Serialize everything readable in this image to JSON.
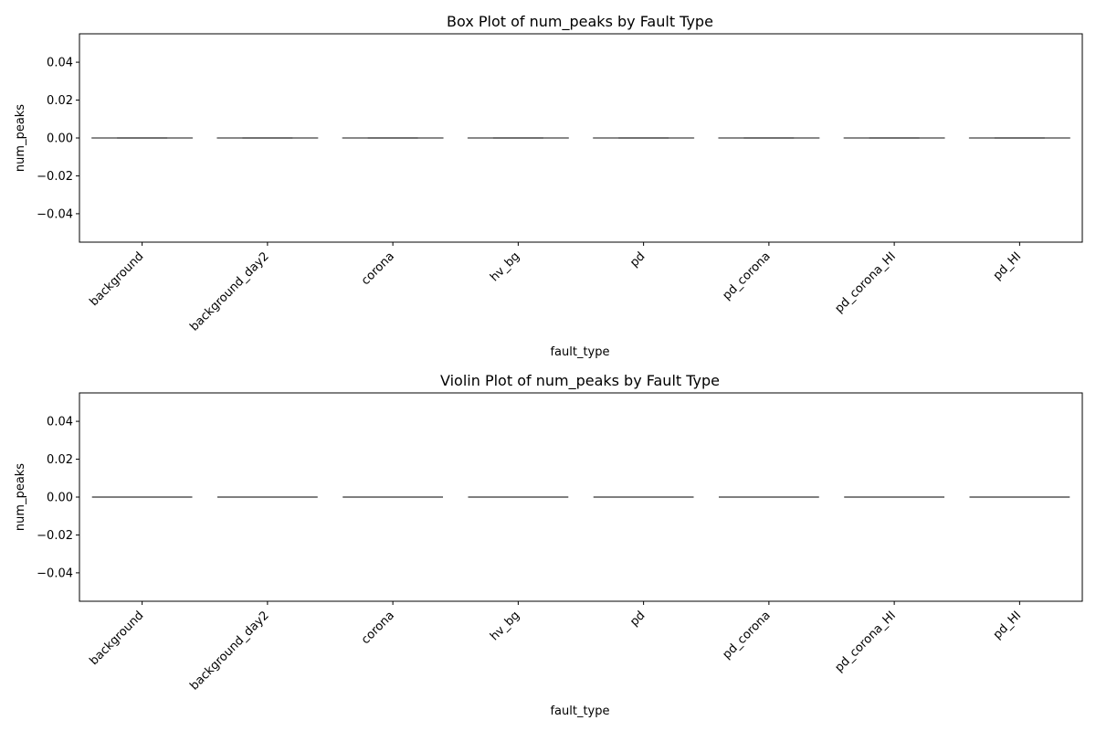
{
  "chart_data": [
    {
      "type": "box",
      "title": "Box Plot of num_peaks by Fault Type",
      "xlabel": "fault_type",
      "ylabel": "num_peaks",
      "categories": [
        "background",
        "background_day2",
        "corona",
        "hv_bg",
        "pd",
        "pd_corona",
        "pd_corona_HI",
        "pd_HI"
      ],
      "series": [
        {
          "stats": [
            {
              "min": 0,
              "q1": 0,
              "median": 0,
              "q3": 0,
              "max": 0
            },
            {
              "min": 0,
              "q1": 0,
              "median": 0,
              "q3": 0,
              "max": 0
            },
            {
              "min": 0,
              "q1": 0,
              "median": 0,
              "q3": 0,
              "max": 0
            },
            {
              "min": 0,
              "q1": 0,
              "median": 0,
              "q3": 0,
              "max": 0
            },
            {
              "min": 0,
              "q1": 0,
              "median": 0,
              "q3": 0,
              "max": 0
            },
            {
              "min": 0,
              "q1": 0,
              "median": 0,
              "q3": 0,
              "max": 0
            },
            {
              "min": 0,
              "q1": 0,
              "median": 0,
              "q3": 0,
              "max": 0
            },
            {
              "min": 0,
              "q1": 0,
              "median": 0,
              "q3": 0,
              "max": 0
            }
          ]
        }
      ],
      "ylim": [
        -0.055,
        0.055
      ],
      "yticks": [
        -0.04,
        -0.02,
        0.0,
        0.02,
        0.04
      ],
      "ytick_labels": [
        "−0.04",
        "−0.02",
        "0.00",
        "0.02",
        "0.04"
      ],
      "grid": false,
      "colors": {
        "box_line": "#555555"
      }
    },
    {
      "type": "violin",
      "title": "Violin Plot of num_peaks by Fault Type",
      "xlabel": "fault_type",
      "ylabel": "num_peaks",
      "categories": [
        "background",
        "background_day2",
        "corona",
        "hv_bg",
        "pd",
        "pd_corona",
        "pd_corona_HI",
        "pd_HI"
      ],
      "series": [
        {
          "values": [
            0,
            0,
            0,
            0,
            0,
            0,
            0,
            0
          ]
        }
      ],
      "ylim": [
        -0.055,
        0.055
      ],
      "yticks": [
        -0.04,
        -0.02,
        0.0,
        0.02,
        0.04
      ],
      "ytick_labels": [
        "−0.04",
        "−0.02",
        "0.00",
        "0.02",
        "0.04"
      ],
      "grid": false,
      "colors": {
        "violin_line": "#555555"
      }
    }
  ]
}
